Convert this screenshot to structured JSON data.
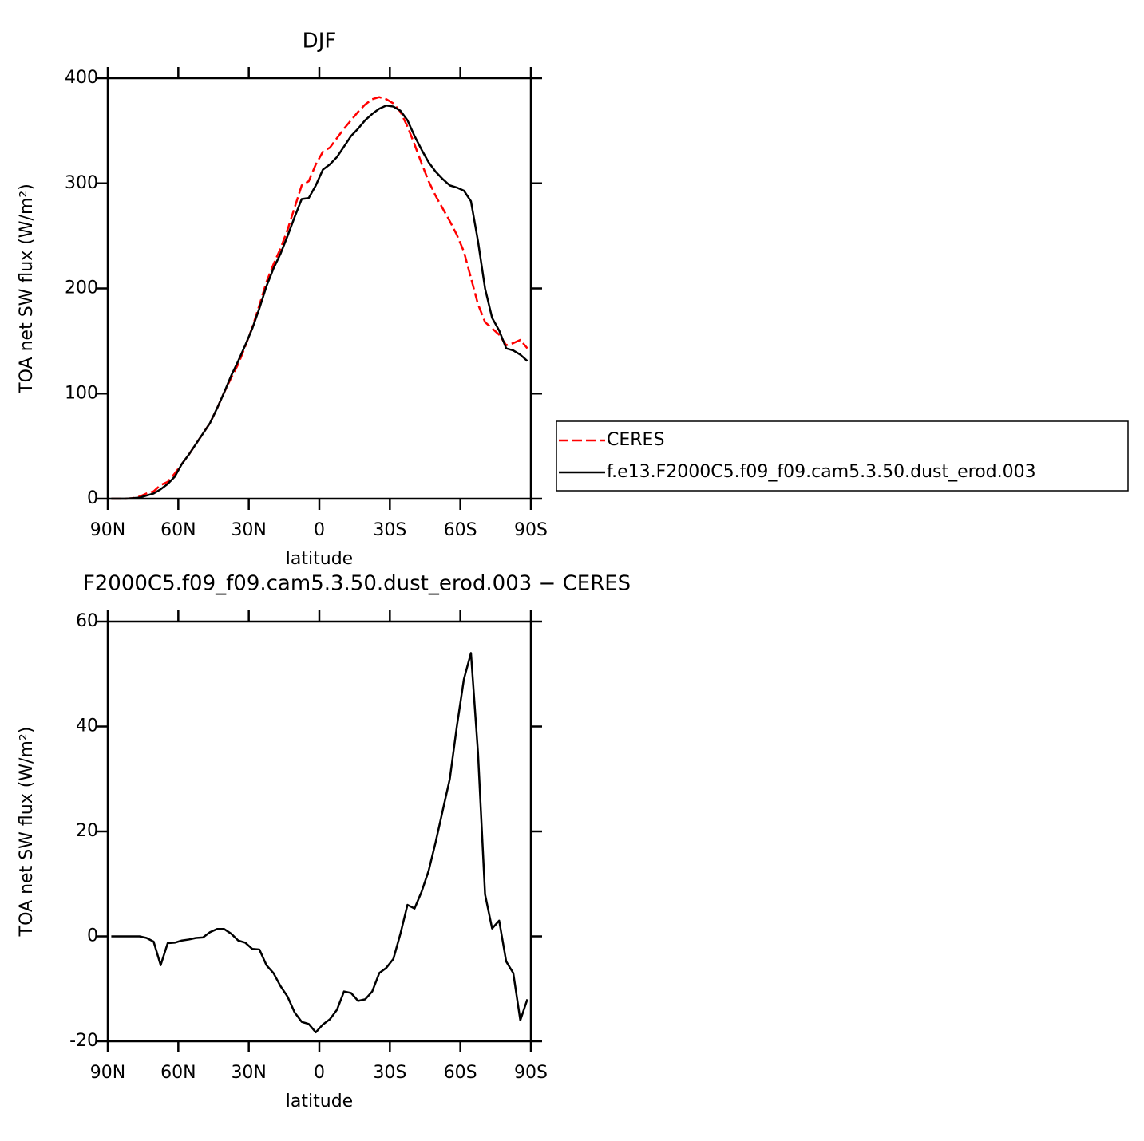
{
  "chart_data": [
    {
      "type": "line",
      "title": "DJF",
      "xlabel": "latitude",
      "ylabel": "TOA net SW flux (W/m²)",
      "x": [
        88.5,
        85.5,
        82.5,
        79.5,
        76.5,
        73.5,
        70.5,
        67.5,
        64.5,
        61.5,
        58.5,
        55.5,
        52.5,
        49.5,
        46.5,
        43.5,
        40.5,
        37.5,
        34.5,
        31.5,
        28.5,
        25.5,
        22.5,
        19.5,
        16.5,
        13.5,
        10.5,
        7.5,
        4.5,
        1.5,
        -1.5,
        -4.5,
        -7.5,
        -10.5,
        -13.5,
        -16.5,
        -19.5,
        -22.5,
        -25.5,
        -28.5,
        -31.5,
        -34.5,
        -37.5,
        -40.5,
        -43.5,
        -46.5,
        -49.5,
        -52.5,
        -55.5,
        -58.5,
        -61.5,
        -64.5,
        -67.5,
        -70.5,
        -73.5,
        -76.5,
        -79.5,
        -82.5,
        -85.5,
        -88.5
      ],
      "series": [
        {
          "name": "CERES",
          "color": "#ff0000",
          "line_style": "dashed",
          "values": [
            0,
            0,
            0,
            0.5,
            2,
            5,
            7,
            13,
            16,
            24,
            33,
            42,
            52,
            62,
            72,
            86,
            101,
            115,
            128,
            145,
            163,
            184,
            206,
            223,
            238,
            256,
            277,
            298,
            302,
            318,
            330,
            334,
            343,
            352,
            360,
            368,
            375,
            380,
            382,
            380,
            376,
            368,
            354,
            337,
            319,
            302,
            288,
            276,
            264,
            251,
            235,
            210,
            185,
            168,
            162,
            156,
            146,
            148,
            151,
            143
          ]
        },
        {
          "name": "f.e13.F2000C5.f09_f09.cam5.3.50.dust_erod.003",
          "color": "#000000",
          "line_style": "solid",
          "values": [
            0,
            0,
            0,
            0.5,
            1,
            3,
            5,
            9,
            14,
            21,
            33,
            42,
            52,
            62,
            72,
            86,
            101,
            117,
            131,
            146,
            162,
            181,
            202,
            219,
            233,
            250,
            268,
            285,
            286,
            298,
            313,
            318,
            325,
            335,
            345,
            352,
            360,
            366,
            371,
            374,
            373,
            369,
            360,
            345,
            332,
            320,
            311,
            304,
            298,
            296,
            293,
            283,
            245,
            200,
            172,
            160,
            143,
            141,
            137,
            131
          ]
        }
      ],
      "xlim": [
        90,
        -90
      ],
      "xticks": [
        {
          "value": 90,
          "label": "90N"
        },
        {
          "value": 60,
          "label": "60N"
        },
        {
          "value": 30,
          "label": "30N"
        },
        0,
        {
          "value": -30,
          "label": "30S"
        },
        {
          "value": -60,
          "label": "60S"
        },
        {
          "value": -90,
          "label": "90S"
        }
      ],
      "ylim": [
        0,
        400
      ],
      "yticks": [
        0,
        100,
        200,
        300,
        400
      ],
      "legend": "right"
    },
    {
      "type": "line",
      "title": "F2000C5.f09_f09.cam5.3.50.dust_erod.003 − CERES",
      "xlabel": "latitude",
      "ylabel": "TOA net SW flux (W/m²)",
      "x": [
        88.5,
        85.5,
        82.5,
        79.5,
        76.5,
        73.5,
        70.5,
        67.5,
        64.5,
        61.5,
        58.5,
        55.5,
        52.5,
        49.5,
        46.5,
        43.5,
        40.5,
        37.5,
        34.5,
        31.5,
        28.5,
        25.5,
        22.5,
        19.5,
        16.5,
        13.5,
        10.5,
        7.5,
        4.5,
        1.5,
        -1.5,
        -4.5,
        -7.5,
        -10.5,
        -13.5,
        -16.5,
        -19.5,
        -22.5,
        -25.5,
        -28.5,
        -31.5,
        -34.5,
        -37.5,
        -40.5,
        -43.5,
        -46.5,
        -49.5,
        -52.5,
        -55.5,
        -58.5,
        -61.5,
        -64.5,
        -67.5,
        -70.5,
        -73.5,
        -76.5,
        -79.5,
        -82.5,
        -85.5,
        -88.5
      ],
      "color": "#000000",
      "values": [
        0,
        0,
        0,
        0,
        0,
        -0.3,
        -1,
        -5.5,
        -1.3,
        -1.2,
        -0.8,
        -0.6,
        -0.3,
        -0.2,
        0.8,
        1.4,
        1.4,
        0.5,
        -0.8,
        -1.2,
        -2.4,
        -2.5,
        -5.5,
        -7,
        -9.5,
        -11.5,
        -14.5,
        -16.3,
        -16.7,
        -18.3,
        -16.8,
        -15.8,
        -14,
        -10.5,
        -10.8,
        -12.3,
        -12,
        -10.5,
        -7,
        -6,
        -4.3,
        0.5,
        6,
        5.3,
        8.5,
        12.5,
        18,
        24,
        30,
        40,
        49,
        54,
        35,
        8,
        1.5,
        3,
        -4.8,
        -7,
        -16,
        -12
      ],
      "xlim": [
        90,
        -90
      ],
      "xticks": [
        {
          "value": 90,
          "label": "90N"
        },
        {
          "value": 60,
          "label": "60N"
        },
        {
          "value": 30,
          "label": "30N"
        },
        0,
        {
          "value": -30,
          "label": "30S"
        },
        {
          "value": -60,
          "label": "60S"
        },
        {
          "value": -90,
          "label": "90S"
        }
      ],
      "ylim": [
        -20,
        60
      ],
      "yticks": [
        -20,
        0,
        20,
        40,
        60
      ]
    }
  ]
}
